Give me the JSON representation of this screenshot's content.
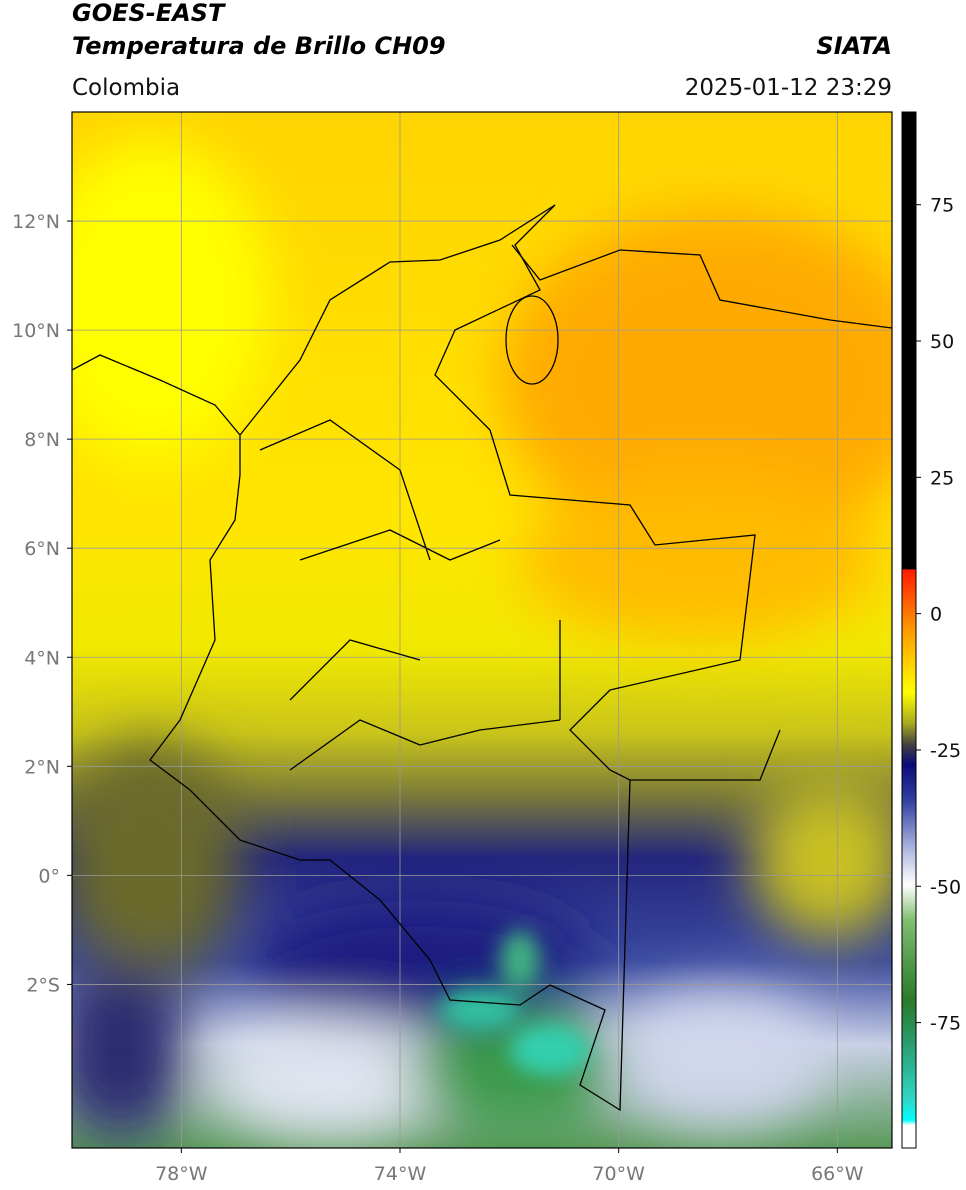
{
  "header": {
    "satellite": "GOES-EAST",
    "product": "Temperatura de Brillo CH09",
    "region": "Colombia",
    "source": "SIATA",
    "datetime": "2025-01-12 23:29"
  },
  "map": {
    "lonlim": [
      -80,
      -65
    ],
    "latlim": [
      -5,
      14
    ],
    "lat_ticks": [
      {
        "value": 12,
        "label": "12°N"
      },
      {
        "value": 10,
        "label": "10°N"
      },
      {
        "value": 8,
        "label": "8°N"
      },
      {
        "value": 6,
        "label": "6°N"
      },
      {
        "value": 4,
        "label": "4°N"
      },
      {
        "value": 2,
        "label": "2°N"
      },
      {
        "value": 0,
        "label": "0°"
      },
      {
        "value": -2,
        "label": "2°S"
      }
    ],
    "lon_ticks": [
      {
        "value": -78,
        "label": "78°W"
      },
      {
        "value": -74,
        "label": "74°W"
      },
      {
        "value": -70,
        "label": "70°W"
      },
      {
        "value": -66,
        "label": "66°W"
      }
    ]
  },
  "colorbar": {
    "limits": [
      -98,
      92
    ],
    "ticks": [
      75,
      50,
      25,
      0,
      -25,
      -50,
      -75
    ]
  }
}
